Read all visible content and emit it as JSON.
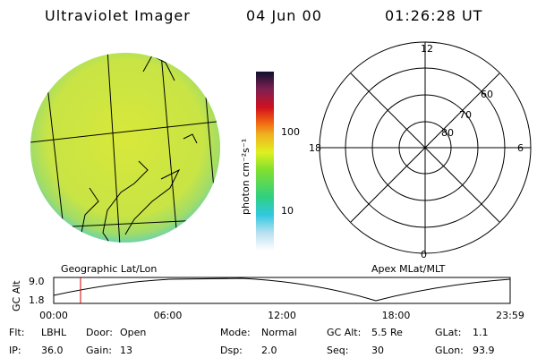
{
  "header": {
    "title": "Ultraviolet Imager",
    "date": "04 Jun 00",
    "time": "01:26:28 UT"
  },
  "colorbar": {
    "label": "photon cm⁻²s⁻¹",
    "ticks": [
      "100",
      "10"
    ]
  },
  "left_panel": {
    "label": "Geographic Lat/Lon"
  },
  "polar_panel": {
    "label": "Apex MLat/MLT",
    "mlt_labels": [
      "12",
      "18",
      "6",
      "0"
    ],
    "mlat_labels": [
      "60",
      "70",
      "80"
    ]
  },
  "altitude_plot": {
    "label": "GC Alt",
    "yticks": [
      "9.0",
      "1.8"
    ],
    "xticks": [
      "00:00",
      "06:00",
      "12:00",
      "18:00",
      "23:59"
    ]
  },
  "info": [
    [
      {
        "key": "Flt:",
        "value": "LBHL"
      },
      {
        "key": "Door:",
        "value": "Open"
      },
      {
        "key": "Mode:",
        "value": "Normal"
      },
      {
        "key": "GC Alt:",
        "value": "5.5 Re"
      },
      {
        "key": "GLat:",
        "value": "1.1"
      }
    ],
    [
      {
        "key": "IP:",
        "value": "36.0"
      },
      {
        "key": "Gain:",
        "value": "13"
      },
      {
        "key": "Dsp:",
        "value": "2.0"
      },
      {
        "key": "Seq:",
        "value": "30"
      },
      {
        "key": "GLon:",
        "value": "93.9"
      }
    ]
  ]
}
